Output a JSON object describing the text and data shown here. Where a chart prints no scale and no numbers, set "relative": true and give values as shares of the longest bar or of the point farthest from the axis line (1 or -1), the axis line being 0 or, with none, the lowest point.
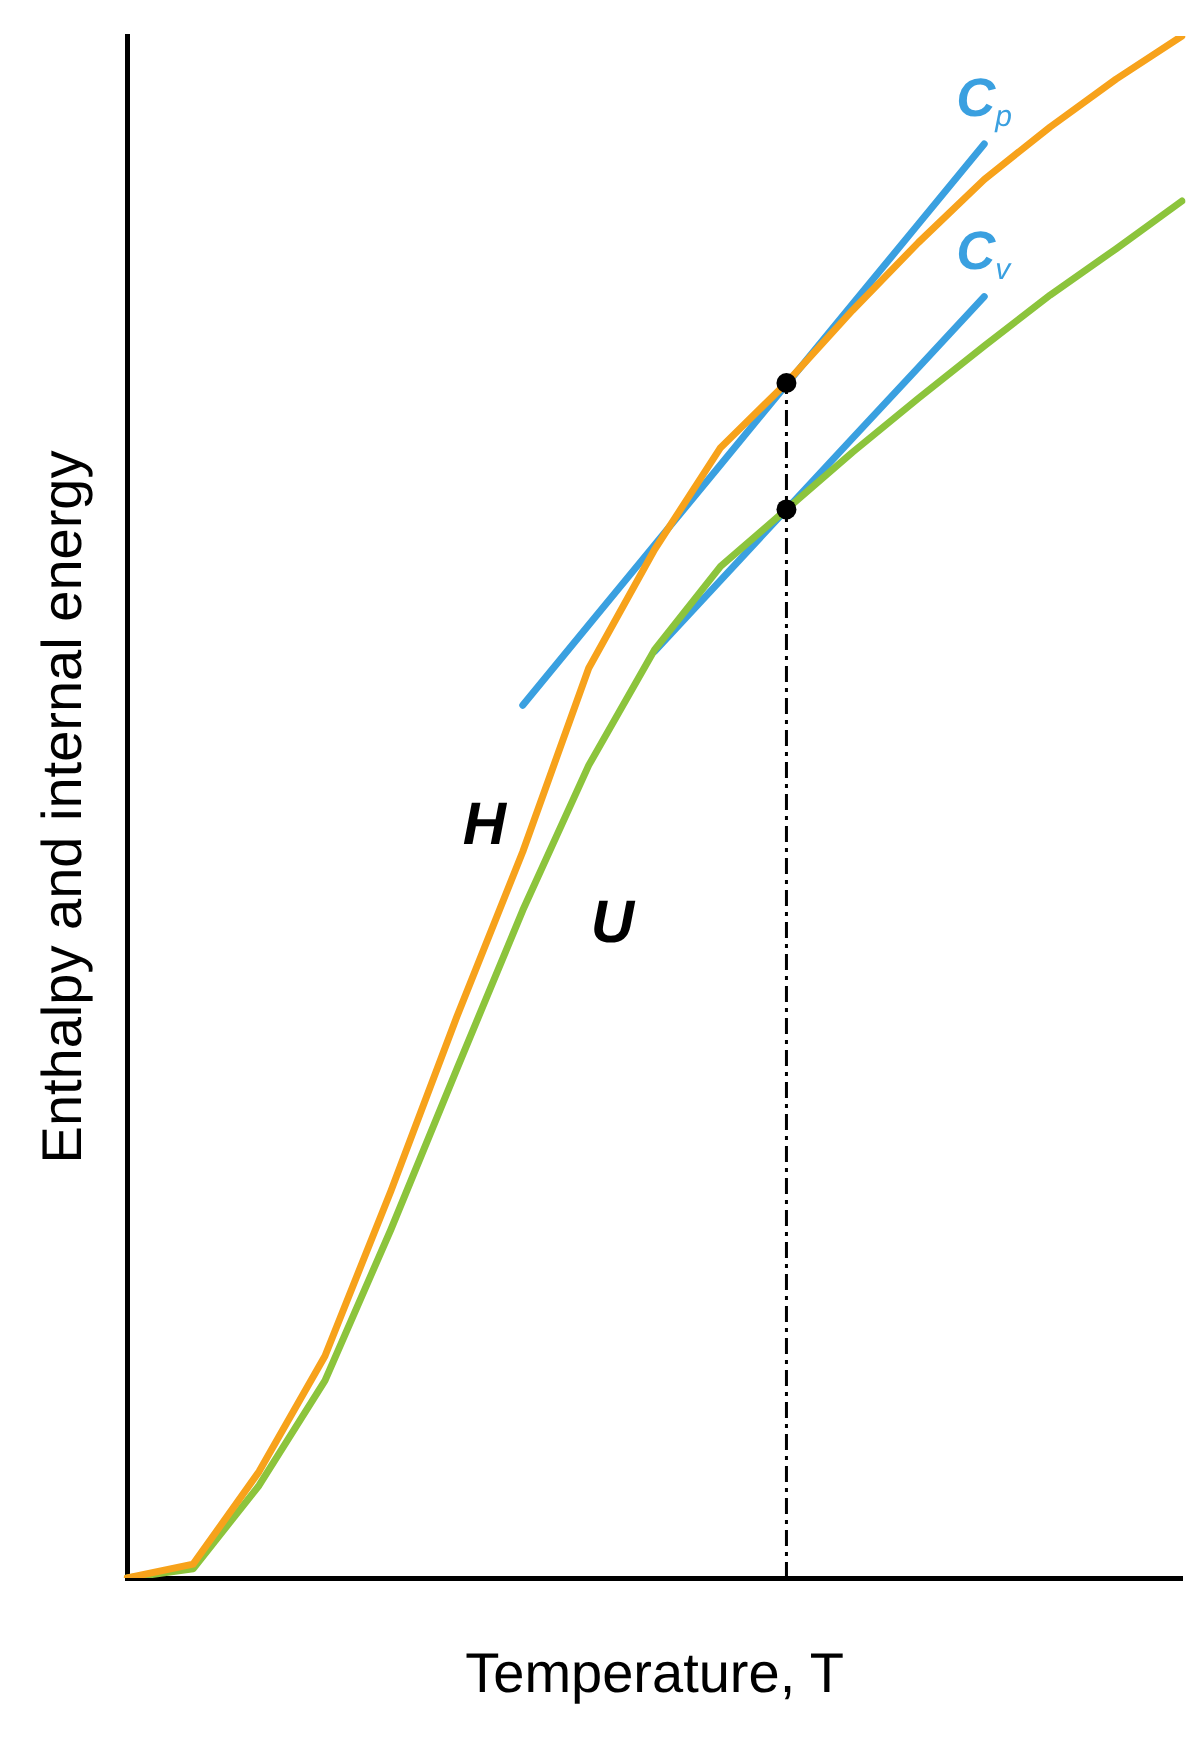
{
  "chart_data": {
    "type": "line",
    "xlabel": "Temperature, T",
    "ylabel": "Enthalpy and internal energy",
    "relative": true,
    "legend": false,
    "marker": "none",
    "line_style": "solid",
    "categories": [
      null,
      null,
      null,
      null,
      null,
      null,
      null,
      null,
      null,
      null,
      null,
      null,
      null,
      null,
      null,
      null,
      null
    ],
    "series": [
      {
        "name": "H",
        "color": "#f7a21b",
        "values": [
          0,
          0.009,
          0.069,
          0.144,
          0.251,
          0.364,
          0.471,
          0.59,
          0.667,
          0.733,
          0.775,
          0.822,
          0.866,
          0.907,
          0.941,
          0.972,
          1
        ]
      },
      {
        "name": "U",
        "color": "#8cc43c",
        "values": [
          0,
          0.006,
          0.06,
          0.128,
          0.226,
          0.33,
          0.433,
          0.527,
          0.602,
          0.656,
          0.693,
          0.73,
          0.765,
          0.799,
          0.832,
          0.862,
          0.893
        ]
      },
      {
        "name": "C$_{p}$",
        "color": "#3aa0e0",
        "values": [
          null,
          null,
          null,
          null,
          null,
          null,
          0.566,
          0.618,
          0.67,
          0.722,
          0.774,
          0.826,
          0.878,
          0.93,
          null,
          null,
          null
        ]
      },
      {
        "name": "C$_{v}$",
        "color": "#3aa0e0",
        "values": [
          null,
          null,
          null,
          null,
          null,
          null,
          null,
          null,
          0.601,
          0.647,
          0.693,
          0.739,
          0.785,
          0.831,
          null,
          null,
          null
        ]
      }
    ]
  }
}
